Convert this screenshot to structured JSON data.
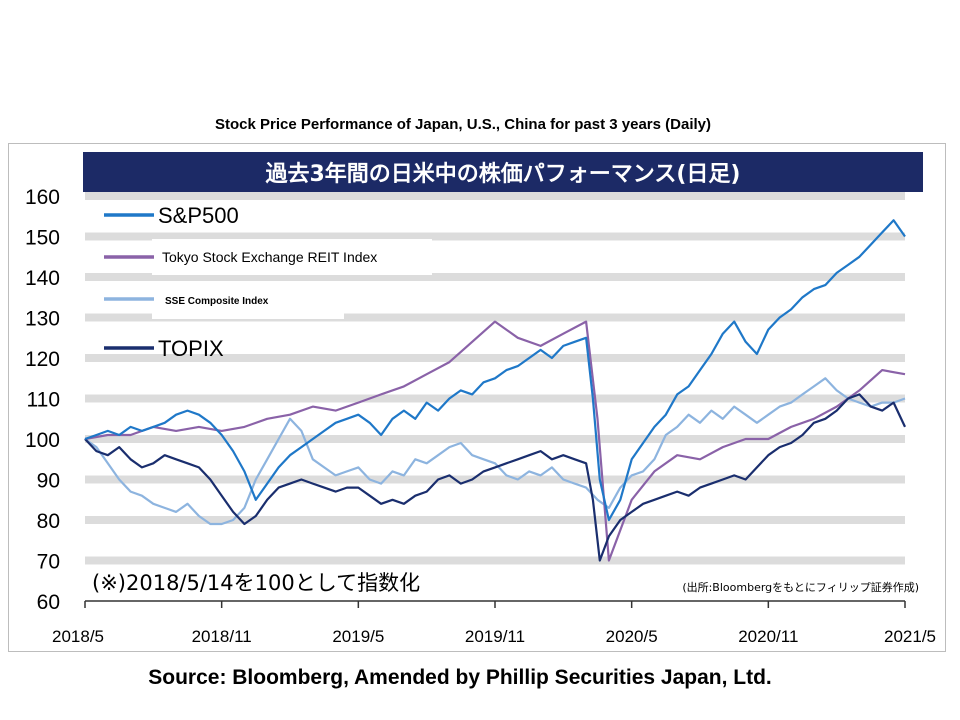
{
  "outer_title": "Stock Price Performance of Japan, U.S., China for past 3 years (Daily)",
  "source": "Source: Bloomberg, Amended by Phillip Securities Japan, Ltd.",
  "chart_data": {
    "type": "line",
    "title": "過去3年間の日米中の株価パフォーマンス(日足)",
    "note": "(※)2018/5/14を100として指数化",
    "credit": "(出所:Bloombergをもとにフィリップ証券作成)",
    "xlabel": "",
    "ylabel": "",
    "ylim": [
      60,
      160
    ],
    "y_ticks": [
      60,
      70,
      80,
      90,
      100,
      110,
      120,
      130,
      140,
      150,
      160
    ],
    "x_ticks": [
      {
        "t": 0,
        "label": "2018/5"
      },
      {
        "t": 6,
        "label": "2018/11"
      },
      {
        "t": 12,
        "label": "2019/5"
      },
      {
        "t": 18,
        "label": "2019/11"
      },
      {
        "t": 24,
        "label": "2020/5"
      },
      {
        "t": 30,
        "label": "2020/11"
      },
      {
        "t": 36,
        "label": "2021/5"
      }
    ],
    "grid": true,
    "legend_position": "top-left",
    "series": [
      {
        "name": "S&P500",
        "color": "#1f78c8",
        "x": [
          0,
          0.5,
          1,
          1.5,
          2,
          2.5,
          3,
          3.5,
          4,
          4.5,
          5,
          5.5,
          6,
          6.5,
          7,
          7.5,
          8,
          8.5,
          9,
          9.5,
          10,
          10.5,
          11,
          11.5,
          12,
          12.5,
          13,
          13.5,
          14,
          14.5,
          15,
          15.5,
          16,
          16.5,
          17,
          17.5,
          18,
          18.5,
          19,
          19.5,
          20,
          20.5,
          21,
          21.5,
          22,
          22.3,
          22.6,
          23,
          23.5,
          24,
          24.5,
          25,
          25.5,
          26,
          26.5,
          27,
          27.5,
          28,
          28.5,
          29,
          29.5,
          30,
          30.5,
          31,
          31.5,
          32,
          32.5,
          33,
          33.5,
          34,
          34.5,
          35,
          35.5,
          36
        ],
        "y": [
          100,
          101,
          102,
          101,
          103,
          102,
          103,
          104,
          106,
          107,
          106,
          104,
          101,
          97,
          92,
          85,
          89,
          93,
          96,
          98,
          100,
          102,
          104,
          105,
          106,
          104,
          101,
          105,
          107,
          105,
          109,
          107,
          110,
          112,
          111,
          114,
          115,
          117,
          118,
          120,
          122,
          120,
          123,
          124,
          125,
          110,
          90,
          80,
          85,
          95,
          99,
          103,
          106,
          111,
          113,
          117,
          121,
          126,
          129,
          124,
          121,
          127,
          130,
          132,
          135,
          137,
          138,
          141,
          143,
          145,
          148,
          151,
          154,
          150
        ]
      },
      {
        "name": "Tokyo Stock Exchange REIT Index",
        "color": "#8a62a8",
        "x": [
          0,
          1,
          2,
          3,
          4,
          5,
          6,
          7,
          8,
          9,
          10,
          11,
          12,
          13,
          14,
          15,
          16,
          17,
          18,
          19,
          20,
          21,
          22,
          22.5,
          23,
          24,
          25,
          26,
          27,
          28,
          29,
          30,
          31,
          32,
          33,
          34,
          35,
          36
        ],
        "y": [
          100,
          101,
          101,
          103,
          102,
          103,
          102,
          103,
          105,
          106,
          108,
          107,
          109,
          111,
          113,
          116,
          119,
          124,
          129,
          125,
          123,
          126,
          129,
          105,
          70,
          85,
          92,
          96,
          95,
          98,
          100,
          100,
          103,
          105,
          108,
          112,
          117,
          116
        ]
      },
      {
        "name": "SSE Composite Index",
        "color": "#8db4df",
        "x": [
          0,
          0.5,
          1,
          1.5,
          2,
          2.5,
          3,
          3.5,
          4,
          4.5,
          5,
          5.5,
          6,
          6.5,
          7,
          7.5,
          8,
          8.5,
          9,
          9.5,
          10,
          10.5,
          11,
          11.5,
          12,
          12.5,
          13,
          13.5,
          14,
          14.5,
          15,
          15.5,
          16,
          16.5,
          17,
          17.5,
          18,
          18.5,
          19,
          19.5,
          20,
          20.5,
          21,
          21.5,
          22,
          22.5,
          23,
          23.5,
          24,
          24.5,
          25,
          25.5,
          26,
          26.5,
          27,
          27.5,
          28,
          28.5,
          29,
          29.5,
          30,
          30.5,
          31,
          31.5,
          32,
          32.5,
          33,
          33.5,
          34,
          34.5,
          35,
          35.5,
          36
        ],
        "y": [
          100,
          98,
          94,
          90,
          87,
          86,
          84,
          83,
          82,
          84,
          81,
          79,
          79,
          80,
          83,
          90,
          95,
          100,
          105,
          102,
          95,
          93,
          91,
          92,
          93,
          90,
          89,
          92,
          91,
          95,
          94,
          96,
          98,
          99,
          96,
          95,
          94,
          91,
          90,
          92,
          91,
          93,
          90,
          89,
          88,
          85,
          83,
          88,
          91,
          92,
          95,
          101,
          103,
          106,
          104,
          107,
          105,
          108,
          106,
          104,
          106,
          108,
          109,
          111,
          113,
          115,
          112,
          110,
          109,
          108,
          109,
          109,
          110
        ]
      },
      {
        "name": "TOPIX",
        "color": "#1a2e6e",
        "x": [
          0,
          0.5,
          1,
          1.5,
          2,
          2.5,
          3,
          3.5,
          4,
          4.5,
          5,
          5.5,
          6,
          6.5,
          7,
          7.5,
          8,
          8.5,
          9,
          9.5,
          10,
          10.5,
          11,
          11.5,
          12,
          12.5,
          13,
          13.5,
          14,
          14.5,
          15,
          15.5,
          16,
          16.5,
          17,
          17.5,
          18,
          18.5,
          19,
          19.5,
          20,
          20.5,
          21,
          21.5,
          22,
          22.3,
          22.6,
          23,
          23.5,
          24,
          24.5,
          25,
          25.5,
          26,
          26.5,
          27,
          27.5,
          28,
          28.5,
          29,
          29.5,
          30,
          30.5,
          31,
          31.5,
          32,
          32.5,
          33,
          33.5,
          34,
          34.5,
          35,
          35.5,
          36
        ],
        "y": [
          100,
          97,
          96,
          98,
          95,
          93,
          94,
          96,
          95,
          94,
          93,
          90,
          86,
          82,
          79,
          81,
          85,
          88,
          89,
          90,
          89,
          88,
          87,
          88,
          88,
          86,
          84,
          85,
          84,
          86,
          87,
          90,
          91,
          89,
          90,
          92,
          93,
          94,
          95,
          96,
          97,
          95,
          96,
          95,
          94,
          85,
          70,
          76,
          80,
          82,
          84,
          85,
          86,
          87,
          86,
          88,
          89,
          90,
          91,
          90,
          93,
          96,
          98,
          99,
          101,
          104,
          105,
          107,
          110,
          111,
          108,
          107,
          109,
          103
        ]
      }
    ]
  }
}
